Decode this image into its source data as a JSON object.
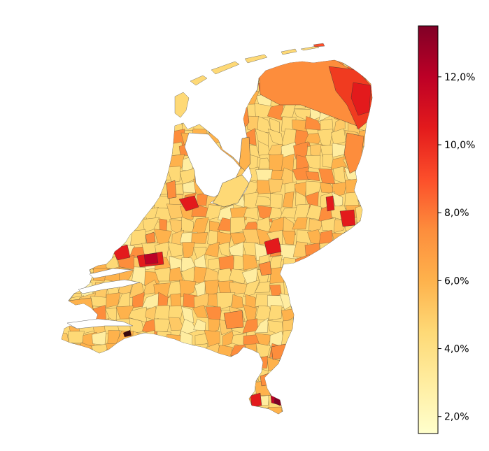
{
  "map": {
    "type": "choropleth",
    "region": "Netherlands",
    "units": "municipalities"
  },
  "colorbar": {
    "colormap": "YlOrRd",
    "orientation": "vertical",
    "placement": "right",
    "min": 1.5,
    "max": 13.5,
    "colors": [
      "#ffffcc",
      "#ffeda0",
      "#fed976",
      "#feb24c",
      "#fd8d3c",
      "#fc4e2a",
      "#e31a1c",
      "#bd0026",
      "#800026"
    ],
    "ticks": [
      {
        "value": 2,
        "label": "2,0%"
      },
      {
        "value": 4,
        "label": "4,0%"
      },
      {
        "value": 6,
        "label": "6,0%"
      },
      {
        "value": 8,
        "label": "8,0%"
      },
      {
        "value": 10,
        "label": "10,0%"
      },
      {
        "value": 12,
        "label": "12,0%"
      }
    ]
  }
}
